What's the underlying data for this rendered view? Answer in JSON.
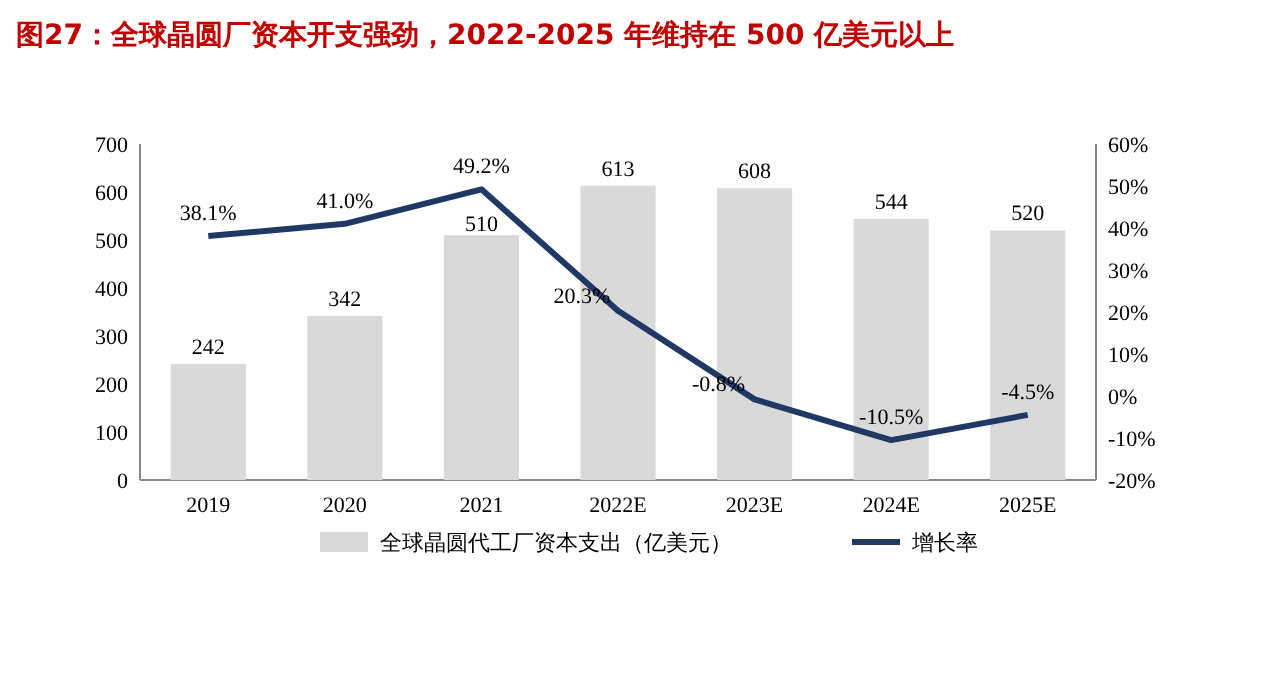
{
  "chart_data": {
    "type": "bar",
    "title": "图27：全球晶圆厂资本开支强劲，2022-2025 年维持在 500 亿美元以上",
    "categories": [
      "2019",
      "2020",
      "2021",
      "2022E",
      "2023E",
      "2024E",
      "2025E"
    ],
    "series": [
      {
        "name": "全球晶圆代工厂资本支出（亿美元）",
        "color": "#d9d9d9",
        "values": [
          242,
          342,
          510,
          613,
          608,
          544,
          520
        ],
        "value_labels": [
          "242",
          "342",
          "510",
          "613",
          "608",
          "544",
          "520"
        ]
      },
      {
        "name": "增长率",
        "type": "line",
        "axis": "y2",
        "color": "#1f3864",
        "values": [
          38.1,
          41.0,
          49.2,
          20.3,
          -0.8,
          -10.5,
          -4.5
        ],
        "value_labels": [
          "38.1%",
          "41.0%",
          "49.2%",
          "20.3%",
          "-0.8%",
          "-10.5%",
          "-4.5%"
        ]
      }
    ],
    "ylim": [
      0,
      700
    ],
    "yticks": [
      0,
      100,
      200,
      300,
      400,
      500,
      600,
      700
    ],
    "y2lim": [
      -20,
      60
    ],
    "y2ticks": [
      {
        "value": -20,
        "label": "-20%"
      },
      {
        "value": -10,
        "label": "-10%"
      },
      {
        "value": 0,
        "label": "0%"
      },
      {
        "value": 10,
        "label": "10%"
      },
      {
        "value": 20,
        "label": "20%"
      },
      {
        "value": 30,
        "label": "30%"
      },
      {
        "value": 40,
        "label": "40%"
      },
      {
        "value": 50,
        "label": "50%"
      },
      {
        "value": 60,
        "label": "60%"
      }
    ],
    "grid": false,
    "legend": "bottom",
    "marker": "none",
    "line_style": "solid"
  }
}
